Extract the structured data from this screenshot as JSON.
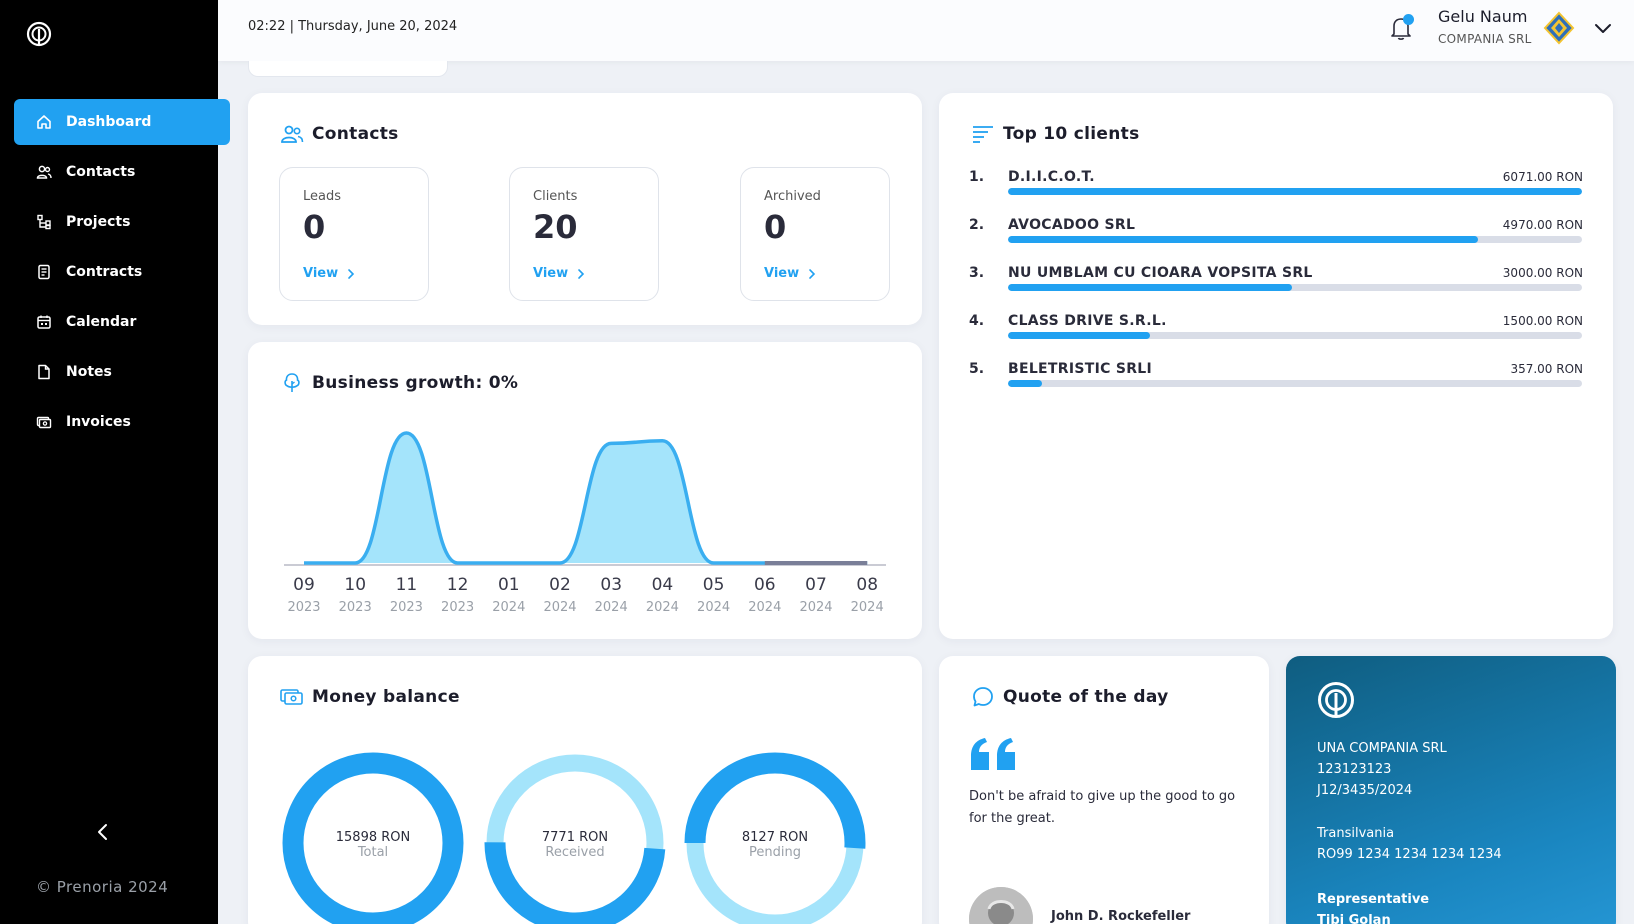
{
  "sidebar": {
    "items": [
      {
        "label": "Dashboard",
        "icon": "home-icon",
        "active": true
      },
      {
        "label": "Contacts",
        "icon": "users-icon"
      },
      {
        "label": "Projects",
        "icon": "projects-icon"
      },
      {
        "label": "Contracts",
        "icon": "contract-icon"
      },
      {
        "label": "Calendar",
        "icon": "calendar-icon"
      },
      {
        "label": "Notes",
        "icon": "note-icon"
      },
      {
        "label": "Invoices",
        "icon": "invoice-icon"
      }
    ],
    "footer": "© Prenoria 2024"
  },
  "header": {
    "datetime": "02:22 | Thursday, June 20, 2024",
    "user_name": "Gelu Naum",
    "user_company": "COMPANIA SRL"
  },
  "contacts": {
    "title": "Contacts",
    "stats": [
      {
        "label": "Leads",
        "value": "0",
        "link": "View"
      },
      {
        "label": "Clients",
        "value": "20",
        "link": "View"
      },
      {
        "label": "Archived",
        "value": "0",
        "link": "View"
      }
    ]
  },
  "growth": {
    "title": "Business growth: 0%"
  },
  "chart_data": {
    "type": "area",
    "x": [
      "09 2023",
      "10 2023",
      "11 2023",
      "12 2023",
      "01 2024",
      "02 2024",
      "03 2024",
      "04 2024",
      "05 2024",
      "06 2024",
      "07 2024",
      "08 2024"
    ],
    "tick_months": [
      "09",
      "10",
      "11",
      "12",
      "01",
      "02",
      "03",
      "04",
      "05",
      "06",
      "07",
      "08"
    ],
    "tick_years": [
      "2023",
      "2023",
      "2023",
      "2023",
      "2024",
      "2024",
      "2024",
      "2024",
      "2024",
      "2024",
      "2024",
      "2024"
    ],
    "series": [
      {
        "values": [
          0,
          0,
          100,
          0,
          0,
          0,
          92,
          94,
          0,
          0,
          0,
          0
        ]
      }
    ],
    "ylim": [
      0,
      100
    ],
    "grid": false,
    "legend": "none",
    "colors": {
      "fill": "#a4e4fb",
      "stroke": "#3aaef0",
      "baseline": "#8a8aa0",
      "future": "#7a7f98"
    }
  },
  "top_clients": {
    "title": "Top 10 clients",
    "items": [
      {
        "rank": "1.",
        "name": "D.I.I.C.O.T.",
        "amount": "6071.00 RON",
        "value": 6071.0
      },
      {
        "rank": "2.",
        "name": "AVOCADOO SRL",
        "amount": "4970.00 RON",
        "value": 4970.0
      },
      {
        "rank": "3.",
        "name": "NU UMBLAM CU CIOARA VOPSITA SRL",
        "amount": "3000.00 RON",
        "value": 3000.0
      },
      {
        "rank": "4.",
        "name": "CLASS DRIVE S.R.L.",
        "amount": "1500.00 RON",
        "value": 1500.0
      },
      {
        "rank": "5.",
        "name": "BELETRISTIC SRLI",
        "amount": "357.00 RON",
        "value": 357.0
      }
    ]
  },
  "balance": {
    "title": "Money balance",
    "donuts": [
      {
        "amount": "15898 RON",
        "label": "Total",
        "fraction": 1.0
      },
      {
        "amount": "7771 RON",
        "label": "Received",
        "fraction": 0.49
      },
      {
        "amount": "8127 RON",
        "label": "Pending",
        "fraction": 0.51
      }
    ]
  },
  "quote": {
    "title": "Quote of the day",
    "text": "Don't be afraid to give up the good to go for the great.",
    "author": "John D. Rockefeller"
  },
  "company": {
    "name": "UNA COMPANIA SRL",
    "code": "123123123",
    "reg": "J12/3435/2024",
    "region": "Transilvania",
    "iban": "RO99 1234 1234 1234 1234",
    "rep_label": "Representative",
    "rep_name": "Tibi Golan"
  },
  "colors": {
    "accent": "#21a1f1",
    "sidebar_bg": "#000000",
    "page_bg": "#eef1f6",
    "light_blue": "#a4e4fb"
  }
}
